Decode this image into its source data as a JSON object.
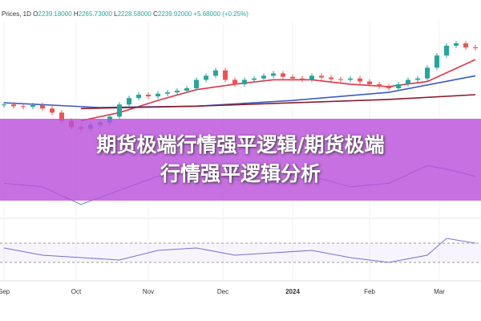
{
  "chart_data": {
    "type": "candlestick",
    "header": {
      "symbol": "Prices, 1D",
      "fields": [
        {
          "key": "O",
          "value": "2239.18000"
        },
        {
          "key": "H",
          "value": "2265.73000"
        },
        {
          "key": "L",
          "value": "2228.58000"
        },
        {
          "key": "C",
          "value": "2239.92000"
        }
      ],
      "change": "+5.68000 (+0.25%)"
    },
    "title": [
      "期货极端行情强平逻辑/期货极端",
      "行情强平逻辑分析"
    ],
    "x": [
      0,
      1,
      2,
      3,
      4,
      5,
      6,
      7,
      8,
      9,
      10,
      11,
      12,
      13,
      14,
      15,
      16,
      17,
      18,
      19,
      20,
      21,
      22,
      23,
      24,
      25,
      26,
      27,
      28,
      29,
      30,
      31,
      32,
      33,
      34,
      35,
      36,
      37,
      38,
      39,
      40,
      41,
      42,
      43,
      44,
      45,
      46,
      47,
      48,
      49
    ],
    "values": [
      2072,
      2067,
      2065,
      2070,
      2060,
      2048,
      2024,
      2005,
      2000,
      2012,
      2019,
      2036,
      2072,
      2091,
      2101,
      2096,
      2104,
      2108,
      2113,
      2120,
      2145,
      2157,
      2173,
      2145,
      2132,
      2145,
      2149,
      2157,
      2164,
      2154,
      2149,
      2145,
      2157,
      2152,
      2147,
      2145,
      2149,
      2140,
      2132,
      2125,
      2120,
      2132,
      2145,
      2149,
      2181,
      2217,
      2246,
      2253,
      2241,
      2240
    ],
    "up_color": "#26a69a",
    "down_color": "#ef5350",
    "xlim": [
      0,
      49
    ],
    "xticks": [
      {
        "value": 0,
        "label": "Sep"
      },
      {
        "value": 7.5,
        "label": "Oct"
      },
      {
        "value": 15,
        "label": "Nov"
      },
      {
        "value": 22.75,
        "label": "Dec"
      },
      {
        "value": 30,
        "label": "2024"
      },
      {
        "value": 38,
        "label": "Feb"
      },
      {
        "value": 45.25,
        "label": "Mar"
      }
    ],
    "ylim": [
      1930,
      2310
    ],
    "lines": [
      {
        "color": "#e0344a",
        "x": [
          8,
          12,
          16,
          20,
          24,
          28,
          32,
          36,
          40,
          44,
          49
        ],
        "values": [
          2024,
          2048,
          2084,
          2116,
          2132,
          2145,
          2145,
          2132,
          2125,
          2140,
          2205
        ]
      },
      {
        "color": "#3b5cc4",
        "x": [
          0,
          10,
          20,
          30,
          40,
          49
        ],
        "values": [
          2077,
          2063,
          2067,
          2084,
          2108,
          2157
        ]
      },
      {
        "color": "#8b1a2a",
        "x": [
          8,
          20,
          30,
          40,
          49
        ],
        "values": [
          2060,
          2067,
          2077,
          2087,
          2101
        ]
      }
    ],
    "panels": [
      {
        "color": "#5a7fd0",
        "ylim": [
          0,
          100
        ],
        "x": [
          0,
          4,
          8,
          12,
          16,
          20,
          24,
          28,
          32,
          36,
          40,
          44,
          46,
          49
        ],
        "values": [
          45,
          40,
          15,
          35,
          55,
          60,
          50,
          45,
          55,
          40,
          45,
          70,
          65,
          55
        ]
      },
      {
        "color": "#7a6fd0",
        "ylim": [
          0,
          100
        ],
        "bands": [
          30,
          70
        ],
        "x": [
          0,
          4,
          8,
          12,
          16,
          20,
          24,
          28,
          32,
          36,
          40,
          44,
          46,
          49
        ],
        "values": [
          60,
          45,
          40,
          35,
          55,
          60,
          45,
          50,
          55,
          40,
          30,
          45,
          80,
          70
        ]
      }
    ]
  }
}
